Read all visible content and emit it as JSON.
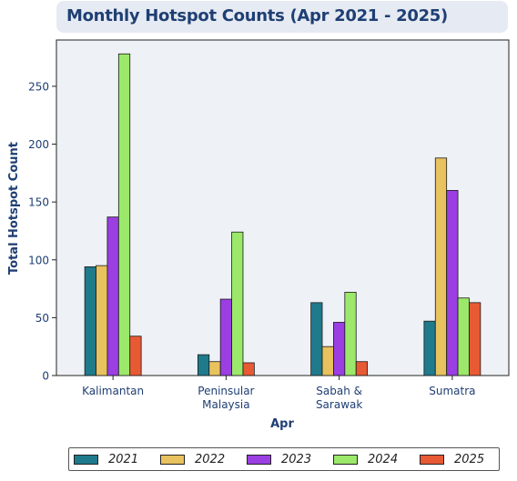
{
  "chart_data": {
    "type": "bar",
    "title": "Monthly Hotspot Counts (Apr 2021 - 2025)",
    "xlabel": "Apr",
    "ylabel": "Total Hotspot Count",
    "categories": [
      "Kalimantan",
      "Peninsular\nMalaysia",
      "Sabah &\nSarawak",
      "Sumatra"
    ],
    "ylim": [
      0,
      290
    ],
    "yticks": [
      0,
      50,
      100,
      150,
      200,
      250
    ],
    "grid": false,
    "legend_position": "bottom",
    "series": [
      {
        "name": "2021",
        "color": "#1f7a8c",
        "values": [
          94,
          18,
          63,
          47
        ]
      },
      {
        "name": "2022",
        "color": "#e8c25e",
        "values": [
          95,
          12,
          25,
          188
        ]
      },
      {
        "name": "2023",
        "color": "#9b3ee2",
        "values": [
          137,
          66,
          46,
          160
        ]
      },
      {
        "name": "2024",
        "color": "#9be86a",
        "values": [
          278,
          124,
          72,
          67
        ]
      },
      {
        "name": "2025",
        "color": "#e85a34",
        "values": [
          34,
          11,
          12,
          63
        ]
      }
    ]
  }
}
